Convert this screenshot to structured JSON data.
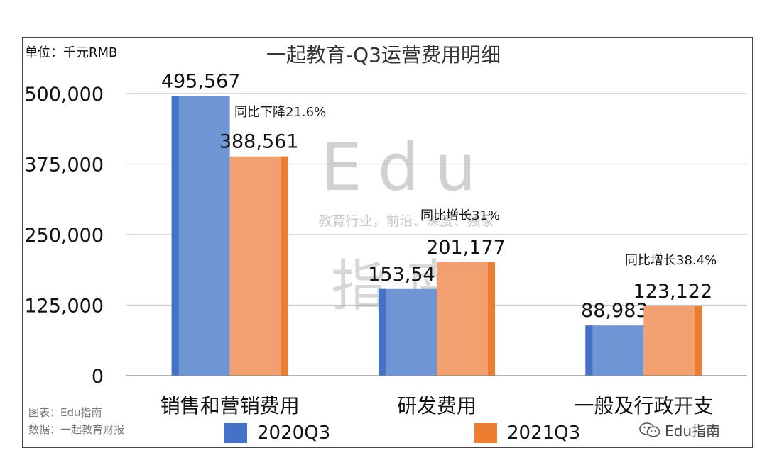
{
  "chart_data": {
    "type": "bar",
    "title": "一起教育-Q3运营费用明细",
    "unit_label": "单位：千元RMB",
    "categories": [
      "销售和营销费用",
      "研发费用",
      "一般及行政开支"
    ],
    "series": [
      {
        "name": "2020Q3",
        "values": [
          495567,
          153545,
          88983
        ],
        "labels": [
          "495,567",
          "153,545",
          "88,983"
        ],
        "color": "#4472C4",
        "color_light": "#6F95D4"
      },
      {
        "name": "2021Q3",
        "values": [
          388561,
          201177,
          123122
        ],
        "labels": [
          "388,561",
          "201,177",
          "123,122"
        ],
        "color": "#ED7D31",
        "color_light": "#F2A070"
      }
    ],
    "y_ticks": [
      "0",
      "125,000",
      "250,000",
      "375,000",
      "500,000"
    ],
    "y_tick_values": [
      0,
      125000,
      250000,
      375000,
      500000
    ],
    "ylim": [
      0,
      500000
    ],
    "grid": true,
    "legend": "bottom",
    "annotations": [
      "同比下降21.6%",
      "同比增长31%",
      "同比增长38.4%"
    ]
  },
  "watermark": {
    "main": "Edu",
    "sub": "教育行业，前沿、深度、独家",
    "bottom": "指南"
  },
  "credit": {
    "chart_by": "图表：Edu指南",
    "source": "数据：一起教育财报"
  },
  "brand": {
    "name": "Edu指南",
    "icon": "wechat-icon"
  }
}
